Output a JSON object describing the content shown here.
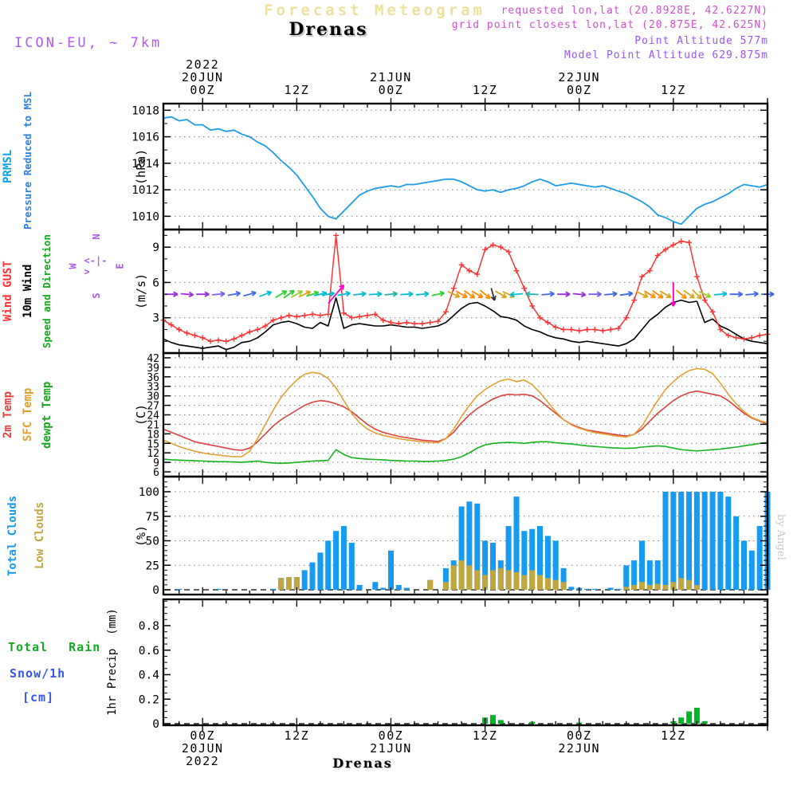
{
  "header": {
    "watermark_title": "Forecast Meteogram",
    "station": "Drenas",
    "model": "ICON-EU, ~ 7km",
    "requested": "requested lon,lat (20.8928E, 42.6227N)",
    "grid_point": "grid point closest lon,lat (20.875E, 42.625N)",
    "point_altitude": "Point Altitude 577m",
    "model_point_altitude": "Model Point Altitude 629.875m"
  },
  "footer": {
    "station": "Drenas",
    "watermark": "by Angel"
  },
  "legends": {
    "pressure": [
      "PRMSL",
      "Pressure Reduced to MSL"
    ],
    "wind": [
      "Wind GUST",
      "10m Wind",
      "Speed and Direction"
    ],
    "compass": {
      "n": "N",
      "s": "S",
      "w": "W",
      "e": "E",
      "cross": "<-|->"
    },
    "temp": [
      "2m Temp",
      "SFC Temp",
      "dewpt Temp"
    ],
    "clouds": [
      "Total Clouds",
      "Low Clouds"
    ],
    "precip_total": "Total",
    "precip_rain": "Rain",
    "precip_snow": "Snow/1h",
    "precip_cm": "[cm]"
  },
  "units": {
    "pressure": "(hPa)",
    "wind": "(m/s)",
    "temp": "(C)",
    "clouds": "(%)",
    "precip": "1hr Precip  (mm)"
  },
  "top_axis": [
    {
      "h": 0,
      "lines": [
        "2022",
        "20JUN",
        "00Z"
      ]
    },
    {
      "h": 12,
      "lines": [
        "12Z"
      ]
    },
    {
      "h": 24,
      "lines": [
        "21JUN",
        "00Z"
      ]
    },
    {
      "h": 36,
      "lines": [
        "12Z"
      ]
    },
    {
      "h": 48,
      "lines": [
        "22JUN",
        "00Z"
      ]
    },
    {
      "h": 60,
      "lines": [
        "12Z"
      ]
    }
  ],
  "bottom_axis": [
    {
      "h": 0,
      "lines": [
        "00Z",
        "20JUN",
        "2022"
      ]
    },
    {
      "h": 12,
      "lines": [
        "12Z"
      ]
    },
    {
      "h": 24,
      "lines": [
        "00Z",
        "21JUN"
      ]
    },
    {
      "h": 36,
      "lines": [
        "12Z"
      ]
    },
    {
      "h": 48,
      "lines": [
        "00Z",
        "22JUN"
      ]
    },
    {
      "h": 60,
      "lines": [
        "12Z"
      ]
    }
  ],
  "chart_data": {
    "type": "line",
    "title": "Forecast Meteogram - Drenas - ICON-EU ~7km",
    "time": {
      "start_hour": -5,
      "end_hour": 72,
      "step": 1,
      "reference": "2022-06-20 00Z",
      "tick_hours": [
        0,
        12,
        24,
        36,
        48,
        60
      ]
    },
    "pressure": {
      "name": "PRMSL Pressure Reduced to MSL",
      "unit": "hPa",
      "color": "#1c9ce8",
      "ylim": [
        1009,
        1018.5
      ],
      "yticks": [
        1010,
        1012,
        1014,
        1016,
        1018
      ],
      "values": [
        1017.4,
        1017.5,
        1017.2,
        1017.3,
        1016.9,
        1016.9,
        1016.5,
        1016.6,
        1016.4,
        1016.5,
        1016.2,
        1016.0,
        1015.6,
        1015.3,
        1014.8,
        1014.2,
        1013.7,
        1013.1,
        1012.3,
        1011.5,
        1010.6,
        1010.0,
        1009.8,
        1010.4,
        1011.0,
        1011.6,
        1011.9,
        1012.1,
        1012.2,
        1012.3,
        1012.2,
        1012.4,
        1012.4,
        1012.5,
        1012.6,
        1012.7,
        1012.8,
        1012.8,
        1012.6,
        1012.3,
        1012.0,
        1011.9,
        1012.0,
        1011.8,
        1012.0,
        1012.1,
        1012.3,
        1012.6,
        1012.8,
        1012.6,
        1012.3,
        1012.4,
        1012.5,
        1012.4,
        1012.3,
        1012.2,
        1012.3,
        1012.1,
        1011.9,
        1011.7,
        1011.4,
        1011.1,
        1010.7,
        1010.1,
        1009.9,
        1009.6,
        1009.4,
        1010.0,
        1010.6,
        1010.9,
        1011.1,
        1011.4,
        1011.7,
        1012.1,
        1012.4,
        1012.3,
        1012.2,
        1012.4
      ]
    },
    "wind": {
      "unit": "m/s",
      "ylim": [
        0,
        10.5
      ],
      "yticks": [
        3,
        6,
        9
      ],
      "gust": {
        "name": "Wind GUST",
        "color": "#ff3333",
        "values": [
          2.8,
          2.4,
          2.0,
          1.7,
          1.5,
          1.3,
          1.0,
          1.1,
          1.0,
          1.2,
          1.5,
          1.8,
          2.0,
          2.3,
          2.8,
          3.0,
          3.2,
          3.1,
          3.2,
          3.3,
          3.2,
          3.3,
          10.0,
          3.4,
          3.0,
          3.1,
          3.2,
          3.3,
          2.8,
          2.6,
          2.5,
          2.6,
          2.5,
          2.5,
          2.6,
          2.7,
          3.5,
          5.5,
          7.5,
          7.0,
          6.7,
          8.8,
          9.2,
          9.0,
          8.6,
          7.0,
          5.5,
          4.0,
          3.0,
          2.6,
          2.2,
          2.0,
          2.0,
          1.9,
          2.0,
          2.0,
          1.9,
          2.0,
          2.1,
          3.0,
          4.5,
          6.5,
          7.0,
          8.3,
          8.8,
          9.2,
          9.5,
          9.4,
          6.5,
          4.5,
          3.5,
          2.0,
          1.5,
          1.3,
          1.2,
          1.3,
          1.5,
          1.6
        ]
      },
      "speed": {
        "name": "10m Wind",
        "color": "#000000",
        "values": [
          1.2,
          0.9,
          0.7,
          0.6,
          0.5,
          0.4,
          0.5,
          0.6,
          0.3,
          0.5,
          0.9,
          1.0,
          1.3,
          1.8,
          2.4,
          2.6,
          2.7,
          2.5,
          2.2,
          2.1,
          2.6,
          2.3,
          4.7,
          2.1,
          2.4,
          2.5,
          2.4,
          2.3,
          2.3,
          2.4,
          2.3,
          2.2,
          2.2,
          2.1,
          2.2,
          2.3,
          2.6,
          3.2,
          3.8,
          4.2,
          4.3,
          4.0,
          3.6,
          3.1,
          3.0,
          2.8,
          2.3,
          2.0,
          1.8,
          1.5,
          1.3,
          1.2,
          1.0,
          0.9,
          1.0,
          0.9,
          0.8,
          0.7,
          0.6,
          0.8,
          1.2,
          2.0,
          2.8,
          3.3,
          3.9,
          4.3,
          4.5,
          4.3,
          4.4,
          2.6,
          2.9,
          2.3,
          2.0,
          1.6,
          1.2,
          1.0,
          0.9,
          0.8
        ]
      },
      "arrows": {
        "y_level": 5,
        "colors": {
          "p": "#9b30e0",
          "v": "#7a5cf0",
          "b": "#4169e1",
          "c": "#00bcd4",
          "t": "#20b2aa",
          "g": "#32cd32",
          "yg": "#9acd32",
          "y": "#d8a520",
          "o": "#ff8c00",
          "m": "#ff00cc",
          "k": "#333333"
        },
        "list": [
          [
            -4,
            0,
            "p"
          ],
          [
            -2,
            -5,
            "p"
          ],
          [
            0,
            0,
            "p"
          ],
          [
            2,
            5,
            "v"
          ],
          [
            4,
            10,
            "b"
          ],
          [
            6,
            15,
            "b"
          ],
          [
            8,
            20,
            "c"
          ],
          [
            10,
            30,
            "g"
          ],
          [
            11,
            35,
            "g"
          ],
          [
            12,
            30,
            "yg"
          ],
          [
            13,
            25,
            "y"
          ],
          [
            14,
            18,
            "g"
          ],
          [
            15,
            12,
            "c"
          ],
          [
            16,
            8,
            "c"
          ],
          [
            17,
            50,
            "m",
            30
          ],
          [
            18,
            10,
            "c"
          ],
          [
            20,
            6,
            "c"
          ],
          [
            22,
            3,
            "c"
          ],
          [
            24,
            5,
            "t"
          ],
          [
            26,
            3,
            "c"
          ],
          [
            28,
            5,
            "c"
          ],
          [
            30,
            12,
            "g"
          ],
          [
            32,
            -25,
            "y"
          ],
          [
            33,
            -30,
            "o"
          ],
          [
            34,
            -35,
            "o"
          ],
          [
            35,
            -30,
            "o"
          ],
          [
            36,
            -40,
            "o"
          ],
          [
            37,
            -75,
            "k"
          ],
          [
            38,
            -30,
            "y"
          ],
          [
            39,
            -25,
            "y"
          ],
          [
            40,
            185,
            "c"
          ],
          [
            42,
            178,
            "t"
          ],
          [
            44,
            5,
            "b"
          ],
          [
            46,
            0,
            "p"
          ],
          [
            48,
            -5,
            "p"
          ],
          [
            50,
            0,
            "v"
          ],
          [
            52,
            5,
            "b"
          ],
          [
            54,
            8,
            "b"
          ],
          [
            56,
            -25,
            "y"
          ],
          [
            57,
            -30,
            "o"
          ],
          [
            58,
            -35,
            "o"
          ],
          [
            59,
            -30,
            "y"
          ],
          [
            60,
            -90,
            "m",
            30
          ],
          [
            61,
            -40,
            "o"
          ],
          [
            62,
            -35,
            "y"
          ],
          [
            63,
            -45,
            "y"
          ],
          [
            64,
            -25,
            "yg"
          ],
          [
            66,
            5,
            "c"
          ],
          [
            68,
            0,
            "b"
          ],
          [
            70,
            5,
            "b"
          ],
          [
            72,
            0,
            "b"
          ]
        ]
      }
    },
    "temp": {
      "unit": "C",
      "ylim": [
        4.5,
        43.5
      ],
      "yticks": [
        6,
        9,
        12,
        15,
        18,
        21,
        24,
        27,
        30,
        33,
        36,
        39,
        42
      ],
      "t2m": {
        "name": "2m Temp",
        "color": "#e04040",
        "values": [
          19.5,
          18.5,
          17.5,
          16.5,
          15.5,
          15.0,
          14.5,
          14.0,
          13.5,
          13.0,
          12.8,
          13.5,
          15.5,
          18.0,
          20.5,
          22.5,
          24.0,
          25.5,
          27.0,
          28.0,
          28.5,
          28.2,
          27.5,
          26.5,
          25.0,
          23.0,
          21.0,
          19.5,
          18.5,
          17.8,
          17.2,
          16.8,
          16.4,
          16.0,
          15.8,
          15.6,
          16.5,
          18.5,
          21.5,
          24.0,
          26.0,
          27.5,
          29.0,
          30.0,
          30.5,
          30.3,
          30.5,
          30.0,
          28.5,
          26.5,
          24.5,
          22.5,
          21.0,
          20.0,
          19.2,
          18.8,
          18.4,
          18.0,
          17.6,
          17.3,
          17.8,
          19.5,
          22.0,
          24.5,
          26.5,
          28.5,
          30.0,
          31.0,
          31.5,
          31.0,
          30.5,
          30.0,
          28.5,
          26.5,
          24.5,
          23.0,
          22.0,
          21.0
        ]
      },
      "sfc": {
        "name": "SFC Temp",
        "color": "#e2a030",
        "values": [
          16.0,
          15.0,
          14.0,
          13.2,
          12.5,
          12.0,
          11.6,
          11.3,
          11.0,
          10.8,
          10.8,
          12.5,
          16.5,
          21.0,
          25.5,
          29.5,
          32.5,
          35.0,
          36.8,
          37.4,
          37.0,
          35.5,
          32.5,
          28.5,
          24.5,
          21.5,
          19.5,
          18.3,
          17.5,
          17.0,
          16.5,
          16.1,
          15.8,
          15.5,
          15.3,
          15.2,
          16.5,
          19.5,
          23.5,
          27.0,
          30.0,
          32.0,
          33.5,
          34.8,
          35.3,
          34.5,
          35.0,
          33.5,
          31.0,
          28.0,
          25.0,
          22.5,
          20.8,
          19.8,
          19.0,
          18.4,
          18.0,
          17.6,
          17.2,
          17.0,
          17.8,
          20.5,
          24.5,
          28.5,
          32.0,
          34.5,
          36.5,
          38.0,
          38.6,
          38.4,
          37.0,
          34.0,
          30.5,
          27.5,
          25.0,
          23.2,
          22.2,
          21.4
        ]
      },
      "dewpt": {
        "name": "dewpt Temp",
        "color": "#15b31c",
        "values": [
          10.0,
          9.8,
          9.7,
          9.6,
          9.5,
          9.4,
          9.3,
          9.2,
          9.2,
          9.1,
          9.0,
          9.2,
          9.4,
          9.0,
          8.8,
          8.7,
          8.8,
          9.0,
          9.2,
          9.4,
          9.5,
          9.6,
          13.0,
          11.5,
          10.5,
          10.2,
          10.0,
          9.9,
          9.8,
          9.6,
          9.5,
          9.4,
          9.4,
          9.3,
          9.3,
          9.4,
          9.6,
          10.0,
          10.8,
          12.0,
          13.5,
          14.5,
          15.0,
          15.2,
          15.3,
          15.2,
          15.0,
          15.3,
          15.5,
          15.5,
          15.2,
          15.0,
          14.8,
          14.5,
          14.2,
          14.0,
          13.8,
          13.6,
          13.5,
          13.4,
          13.5,
          13.8,
          14.0,
          14.2,
          14.0,
          13.5,
          13.0,
          12.8,
          12.6,
          12.8,
          13.0,
          13.2,
          13.5,
          13.8,
          14.2,
          14.6,
          15.0,
          15.3
        ]
      }
    },
    "clouds": {
      "unit": "%",
      "ylim": [
        0,
        115
      ],
      "yticks": [
        0,
        25,
        50,
        75,
        100
      ],
      "total": {
        "name": "Total Clouds",
        "color": "#169bf0",
        "values": [
          0,
          0,
          1,
          0,
          0,
          0,
          0,
          1,
          0,
          0,
          0,
          0,
          0,
          0,
          1,
          12,
          13,
          13,
          20,
          28,
          38,
          50,
          60,
          65,
          48,
          5,
          0,
          8,
          2,
          40,
          5,
          2,
          0,
          0,
          10,
          0,
          22,
          30,
          85,
          90,
          88,
          50,
          48,
          30,
          65,
          95,
          60,
          62,
          65,
          55,
          50,
          22,
          3,
          2,
          1,
          1,
          0,
          2,
          1,
          25,
          30,
          50,
          30,
          30,
          100,
          100,
          100,
          100,
          100,
          100,
          100,
          100,
          95,
          75,
          50,
          40,
          65,
          100
        ]
      },
      "low": {
        "name": "Low Clouds",
        "color": "#bfa63e",
        "values": [
          0,
          0,
          0,
          0,
          0,
          0,
          0,
          0,
          0,
          0,
          0,
          0,
          0,
          0,
          0,
          12,
          13,
          13,
          0,
          0,
          0,
          0,
          0,
          0,
          0,
          0,
          0,
          0,
          0,
          0,
          0,
          0,
          0,
          0,
          10,
          0,
          8,
          25,
          30,
          25,
          20,
          15,
          20,
          22,
          20,
          18,
          15,
          20,
          15,
          12,
          10,
          8,
          0,
          0,
          0,
          0,
          0,
          0,
          0,
          3,
          5,
          8,
          5,
          6,
          5,
          8,
          12,
          10,
          5,
          0,
          0,
          0,
          0,
          0,
          0,
          0,
          0,
          0
        ]
      }
    },
    "precip": {
      "unit": "mm",
      "ylim": [
        0,
        1.0
      ],
      "yticks": [
        0,
        0.2,
        0.4,
        0.6,
        0.8
      ],
      "color": "#00b428",
      "bars": [
        [
          36,
          0.05
        ],
        [
          37,
          0.07
        ],
        [
          38,
          0.03
        ],
        [
          42,
          0.015
        ],
        [
          48,
          0.01
        ],
        [
          60,
          0.02
        ],
        [
          61,
          0.05
        ],
        [
          62,
          0.1
        ],
        [
          63,
          0.13
        ],
        [
          64,
          0.02
        ]
      ]
    }
  }
}
